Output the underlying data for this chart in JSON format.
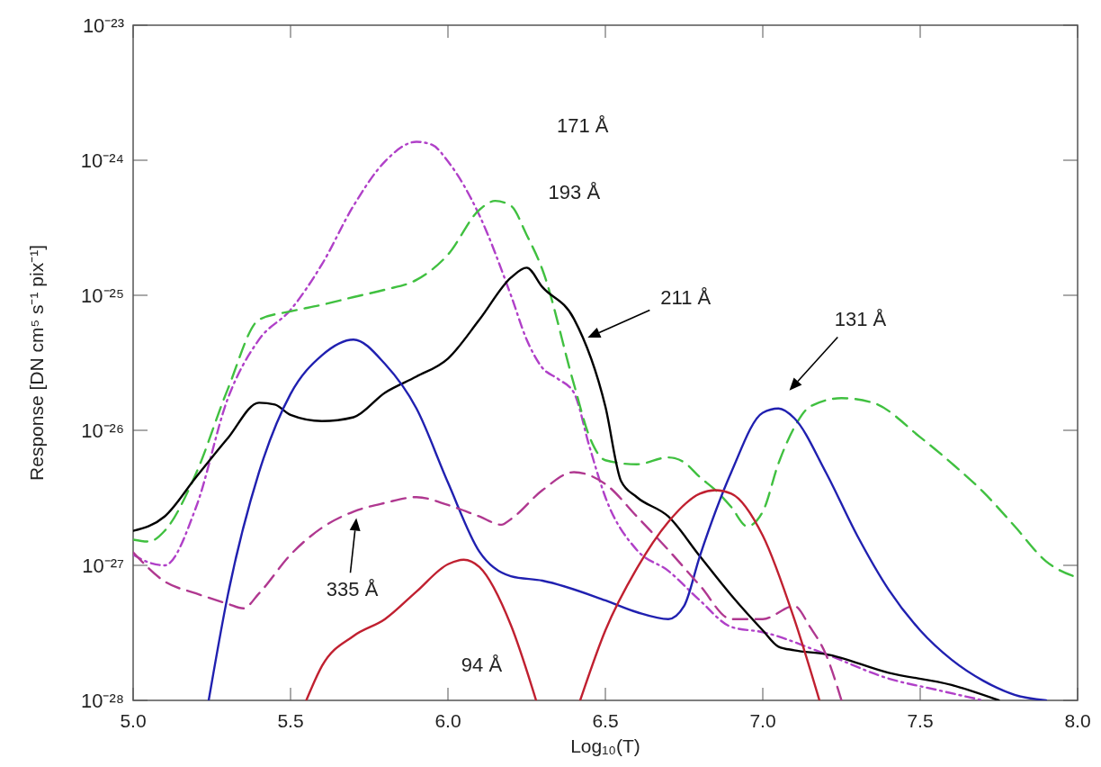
{
  "chart_data": {
    "type": "line",
    "xlabel": "Log₁₀(T)",
    "ylabel": "Response [DN cm⁵ s⁻¹ pix⁻¹]",
    "log": "y",
    "grid": false,
    "xlim": [
      5.0,
      8.0
    ],
    "xticks": [
      {
        "value": 5.0,
        "label": "5.0"
      },
      {
        "value": 5.5,
        "label": "5.5"
      },
      {
        "value": 6.0,
        "label": "6.0"
      },
      {
        "value": 6.5,
        "label": "6.5"
      },
      {
        "value": 7.0,
        "label": "7.0"
      },
      {
        "value": 7.5,
        "label": "7.5"
      },
      {
        "value": 8.0,
        "label": "8.0"
      }
    ],
    "ylim": [
      1e-28,
      1e-23
    ],
    "yticks": [
      {
        "value": 1e-28,
        "label": "10⁻²⁸"
      },
      {
        "value": 1e-27,
        "label": "10⁻²⁷"
      },
      {
        "value": 1e-26,
        "label": "10⁻²⁶"
      },
      {
        "value": 1e-25,
        "label": "10⁻²⁵"
      },
      {
        "value": 1e-24,
        "label": "10⁻²⁴"
      },
      {
        "value": 1e-23,
        "label": "10⁻²³"
      }
    ],
    "series": [
      {
        "color": "#b040c8",
        "line_style": "dashdot",
        "x": [
          5.0,
          5.05,
          5.1,
          5.2,
          5.3,
          5.4,
          5.5,
          5.6,
          5.7,
          5.8,
          5.9,
          5.95,
          6.0,
          6.1,
          6.2,
          6.25,
          6.3,
          6.35,
          6.4,
          6.45,
          6.5,
          6.6,
          6.7,
          6.8,
          6.9,
          7.0,
          7.2,
          7.4,
          7.55,
          7.7
        ],
        "values": [
          1.2e-27,
          1.05e-27,
          1e-27,
          2.7e-27,
          1.7e-26,
          4.7e-26,
          7.8e-26,
          1.7e-25,
          4.6e-25,
          9.8e-25,
          1.37e-24,
          1.3e-24,
          9.8e-25,
          3.9e-25,
          1e-25,
          4.7e-26,
          2.9e-26,
          2.4e-26,
          1.9e-26,
          7.5e-27,
          3.2e-27,
          1.3e-27,
          9.1e-28,
          5.5e-28,
          3.5e-28,
          3.2e-28,
          2.2e-28,
          1.45e-28,
          1.2e-28,
          1e-28
        ]
      },
      {
        "color": "#40c040",
        "line_style": "dashed",
        "x": [
          5.0,
          5.05,
          5.1,
          5.2,
          5.3,
          5.4,
          5.5,
          5.6,
          5.7,
          5.8,
          5.9,
          6.0,
          6.1,
          6.15,
          6.2,
          6.25,
          6.3,
          6.4,
          6.45,
          6.5,
          6.6,
          6.7,
          6.75,
          6.8,
          6.85,
          6.9,
          6.95,
          7.0,
          7.05,
          7.1,
          7.15,
          7.25,
          7.35,
          7.5,
          7.6,
          7.7,
          7.8,
          7.9,
          8.0
        ],
        "values": [
          1.55e-27,
          1.5e-27,
          1.8e-27,
          4.8e-27,
          2e-26,
          6.6e-26,
          7.6e-26,
          8.5e-26,
          9.7e-26,
          1.1e-25,
          1.3e-25,
          2e-25,
          4.3e-25,
          5e-25,
          4.6e-25,
          2.8e-25,
          1.55e-25,
          2.2e-26,
          8.9e-27,
          6e-27,
          5.6e-27,
          6.3e-27,
          5.8e-27,
          4.5e-27,
          3.6e-27,
          2.7e-27,
          1.95e-27,
          2.5e-27,
          5.7e-27,
          1.05e-26,
          1.5e-26,
          1.73e-26,
          1.6e-26,
          8.9e-27,
          5.7e-27,
          3.5e-27,
          1.95e-27,
          1.07e-27,
          8.1e-28
        ]
      },
      {
        "color": "#000000",
        "line_style": "solid",
        "x": [
          5.0,
          5.1,
          5.2,
          5.3,
          5.4,
          5.45,
          5.5,
          5.6,
          5.7,
          5.8,
          5.9,
          6.0,
          6.1,
          6.2,
          6.25,
          6.3,
          6.4,
          6.5,
          6.55,
          6.6,
          6.7,
          6.8,
          6.9,
          7.0,
          7.05,
          7.1,
          7.2,
          7.4,
          7.6,
          7.75
        ],
        "values": [
          1.8e-27,
          2.3e-27,
          4.5e-27,
          8.7e-27,
          1.6e-26,
          1.55e-26,
          1.3e-26,
          1.17e-26,
          1.25e-26,
          1.9e-26,
          2.5e-26,
          3.4e-26,
          6.6e-26,
          1.35e-25,
          1.6e-25,
          1.15e-25,
          6.7e-26,
          1.5e-26,
          4.2e-27,
          3.2e-27,
          2.3e-27,
          1.17e-27,
          6e-28,
          3.3e-28,
          2.5e-28,
          2.35e-28,
          2.2e-28,
          1.6e-28,
          1.3e-28,
          1e-28
        ]
      },
      {
        "color": "#2020b0",
        "line_style": "solid",
        "x": [
          5.24,
          5.3,
          5.4,
          5.5,
          5.6,
          5.7,
          5.8,
          5.9,
          6.0,
          6.1,
          6.2,
          6.3,
          6.5,
          6.6,
          6.7,
          6.75,
          6.8,
          6.9,
          7.0,
          7.05,
          7.1,
          7.2,
          7.3,
          7.4,
          7.5,
          7.6,
          7.7,
          7.8,
          7.9
        ],
        "values": [
          1e-28,
          5.9e-28,
          4.9e-27,
          1.86e-26,
          3.6e-26,
          4.7e-26,
          3.1e-26,
          1.45e-26,
          4.1e-27,
          1.26e-27,
          8.3e-28,
          7.7e-28,
          5.5e-28,
          4.5e-28,
          4e-28,
          5e-28,
          1.17e-27,
          4.9e-27,
          1.35e-26,
          1.45e-26,
          1.23e-26,
          4.9e-27,
          1.66e-27,
          6.6e-28,
          3.3e-28,
          2e-28,
          1.4e-28,
          1.1e-28,
          1e-28
        ]
      },
      {
        "color": "#b03890",
        "line_style": "dashed",
        "x": [
          5.0,
          5.1,
          5.2,
          5.3,
          5.35,
          5.4,
          5.5,
          5.6,
          5.7,
          5.8,
          5.9,
          6.0,
          6.1,
          6.17,
          6.2,
          6.3,
          6.4,
          6.5,
          6.6,
          6.7,
          6.8,
          6.9,
          7.0,
          7.1,
          7.15,
          7.2,
          7.25
        ],
        "values": [
          1.25e-27,
          7.6e-28,
          6.2e-28,
          5.2e-28,
          4.8e-28,
          6.2e-28,
          1.2e-27,
          1.9e-27,
          2.5e-27,
          2.9e-27,
          3.2e-27,
          2.8e-27,
          2.3e-27,
          2e-27,
          2.2e-27,
          3.6e-27,
          4.9e-27,
          4e-27,
          2.3e-27,
          1.3e-27,
          7.1e-28,
          4e-28,
          4e-28,
          5e-28,
          3.5e-28,
          2.2e-28,
          1e-28
        ]
      },
      {
        "color": "#c02030",
        "line_style": "solid",
        "x": [
          5.55,
          5.6,
          5.7,
          5.8,
          5.9,
          6.0,
          6.05,
          6.1,
          6.2,
          6.28
        ],
        "values": [
          1e-28,
          1.8e-28,
          3e-28,
          4e-28,
          6.4e-28,
          1.02e-27,
          1.1e-27,
          9.7e-28,
          3.6e-28,
          1e-28
        ]
      },
      {
        "color": "#c02030",
        "line_style": "solid",
        "x": [
          6.42,
          6.5,
          6.6,
          6.7,
          6.8,
          6.85,
          6.9,
          7.0,
          7.1,
          7.18
        ],
        "values": [
          1e-28,
          3.3e-28,
          9.5e-28,
          2.1e-27,
          3.4e-27,
          3.6e-27,
          3.4e-27,
          1.66e-27,
          4e-28,
          1e-28
        ]
      }
    ],
    "annotations": [
      "171 Å",
      "193 Å",
      "211 Å",
      "131 Å",
      "335 Å",
      "94 Å"
    ]
  }
}
